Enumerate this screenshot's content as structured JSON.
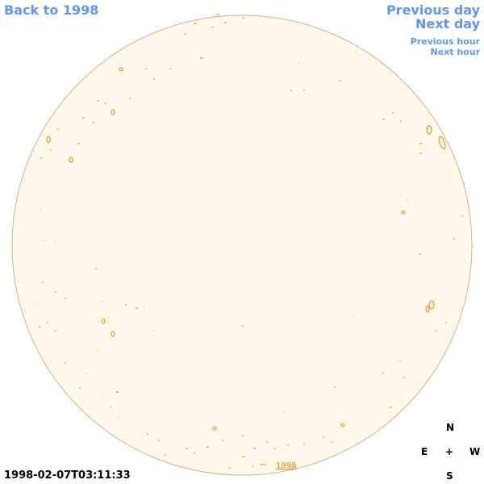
{
  "nav": {
    "back": "Back to 1998",
    "previous_day": "Previous day",
    "next_day": "Next day",
    "previous_hour": "Previous hour",
    "next_hour": "Next hour"
  },
  "year_link": "1998",
  "compass": {
    "north": "N",
    "east": "E",
    "center": "+",
    "west": "W",
    "south": "S"
  },
  "timestamp": "1998-02-07T03:11:33"
}
